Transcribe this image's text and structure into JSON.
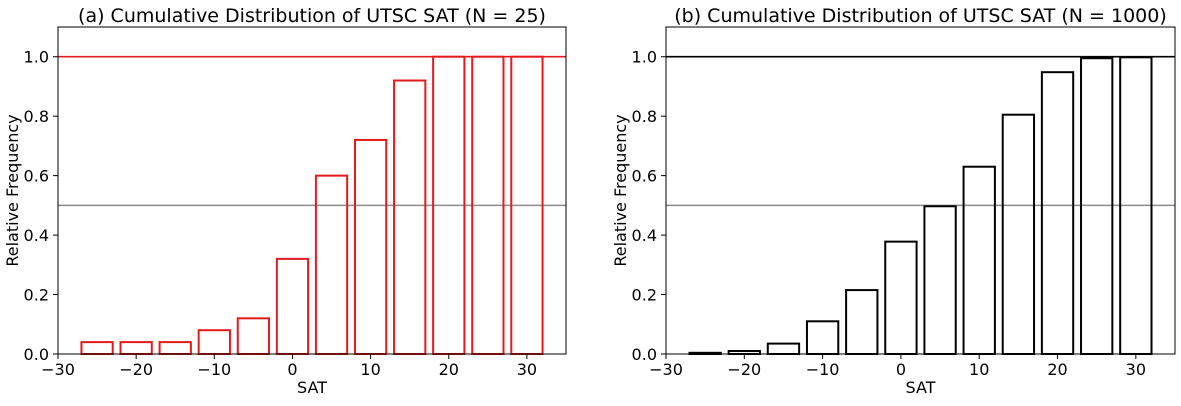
{
  "chart_data": [
    {
      "type": "bar",
      "title": "(a) Cumulative Distribution of UTSC SAT (N = 25)",
      "xlabel": "SAT",
      "ylabel": "Relative Frequency",
      "xlim": [
        -30,
        35
      ],
      "ylim": [
        0,
        1.1
      ],
      "xticks": [
        -30,
        -20,
        -10,
        0,
        10,
        20,
        30
      ],
      "yticks": [
        0.0,
        0.2,
        0.4,
        0.6,
        0.8,
        1.0
      ],
      "xtick_labels": [
        "−30",
        "−20",
        "−10",
        "0",
        "10",
        "20",
        "30"
      ],
      "ytick_labels": [
        "0.0",
        "0.2",
        "0.4",
        "0.6",
        "0.8",
        "1.0"
      ],
      "x": [
        -25,
        -20,
        -15,
        -10,
        -5,
        0,
        5,
        10,
        15,
        20,
        25,
        30
      ],
      "bar_width": 4,
      "values": [
        0.04,
        0.04,
        0.04,
        0.08,
        0.12,
        0.32,
        0.6,
        0.72,
        0.92,
        1.0,
        1.0,
        1.0
      ],
      "edge_color": "#e41a1c",
      "reference_lines": [
        {
          "y": 1.0,
          "color": "#e41a1c"
        },
        {
          "y": 0.5,
          "color": "#8c8c8c"
        }
      ],
      "grid": false
    },
    {
      "type": "bar",
      "title": "(b) Cumulative Distribution of UTSC SAT (N = 1000)",
      "xlabel": "SAT",
      "ylabel": "Relative Frequency",
      "xlim": [
        -30,
        35
      ],
      "ylim": [
        0,
        1.1
      ],
      "xticks": [
        -30,
        -20,
        -10,
        0,
        10,
        20,
        30
      ],
      "yticks": [
        0.0,
        0.2,
        0.4,
        0.6,
        0.8,
        1.0
      ],
      "xtick_labels": [
        "−30",
        "−20",
        "−10",
        "0",
        "10",
        "20",
        "30"
      ],
      "ytick_labels": [
        "0.0",
        "0.2",
        "0.4",
        "0.6",
        "0.8",
        "1.0"
      ],
      "x": [
        -25,
        -20,
        -15,
        -10,
        -5,
        0,
        5,
        10,
        15,
        20,
        25,
        30
      ],
      "bar_width": 4,
      "values": [
        0.004,
        0.01,
        0.035,
        0.11,
        0.215,
        0.378,
        0.497,
        0.63,
        0.805,
        0.948,
        0.995,
        0.998
      ],
      "edge_color": "#000000",
      "reference_lines": [
        {
          "y": 1.0,
          "color": "#000000"
        },
        {
          "y": 0.5,
          "color": "#8c8c8c"
        }
      ],
      "grid": false
    }
  ]
}
